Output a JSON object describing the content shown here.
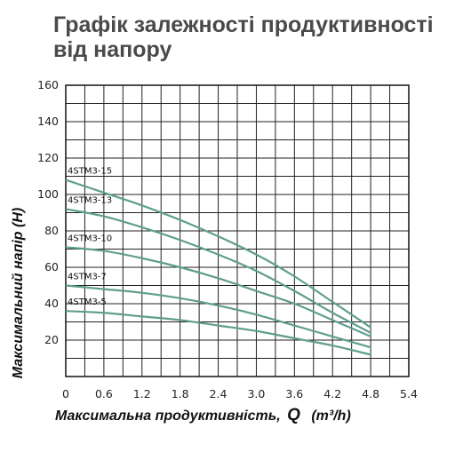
{
  "title": "Графік залежності продуктивності від напору",
  "chart_data": {
    "type": "line",
    "title": "Графік залежності продуктивності від напору",
    "ylabel": "Максимальний напір (H)",
    "xlabel_main": "Максимальна продуктивність,",
    "xlabel_q": "Q",
    "xlabel_unit": "(m³/h)",
    "xlim": [
      0,
      5.4
    ],
    "ylim": [
      0,
      160
    ],
    "x_ticks": [
      "0",
      "0.6",
      "1.2",
      "1.8",
      "2.4",
      "3.0",
      "3.6",
      "4.2",
      "4.8",
      "5.4"
    ],
    "y_ticks": [
      "20",
      "40",
      "60",
      "80",
      "100",
      "120",
      "140",
      "160"
    ],
    "grid": true,
    "line_color": "#5f9e8e",
    "series": [
      {
        "name": "4STM3-15",
        "x": [
          0,
          0.6,
          1.2,
          1.8,
          2.4,
          3.0,
          3.6,
          4.2,
          4.8
        ],
        "values": [
          108,
          101,
          94,
          86,
          77,
          67,
          55,
          41,
          27
        ]
      },
      {
        "name": "4STM3-13",
        "x": [
          0,
          0.6,
          1.2,
          1.8,
          2.4,
          3.0,
          3.6,
          4.2,
          4.8
        ],
        "values": [
          92,
          88,
          82,
          75,
          67,
          58,
          47,
          35,
          24
        ]
      },
      {
        "name": "4STM3-10",
        "x": [
          0,
          0.6,
          1.2,
          1.8,
          2.4,
          3.0,
          3.6,
          4.2,
          4.8
        ],
        "values": [
          71,
          69,
          65,
          60,
          54,
          47,
          40,
          31,
          22
        ]
      },
      {
        "name": "4STM3-7",
        "x": [
          0,
          0.6,
          1.2,
          1.8,
          2.4,
          3.0,
          3.6,
          4.2,
          4.8
        ],
        "values": [
          50,
          48,
          46,
          43,
          39,
          34,
          28,
          22,
          16
        ]
      },
      {
        "name": "4STM3-5",
        "x": [
          0,
          0.6,
          1.2,
          1.8,
          2.4,
          3.0,
          3.6,
          4.2,
          4.8
        ],
        "values": [
          36,
          35,
          33,
          31,
          28,
          25,
          21,
          17,
          12
        ]
      }
    ]
  }
}
